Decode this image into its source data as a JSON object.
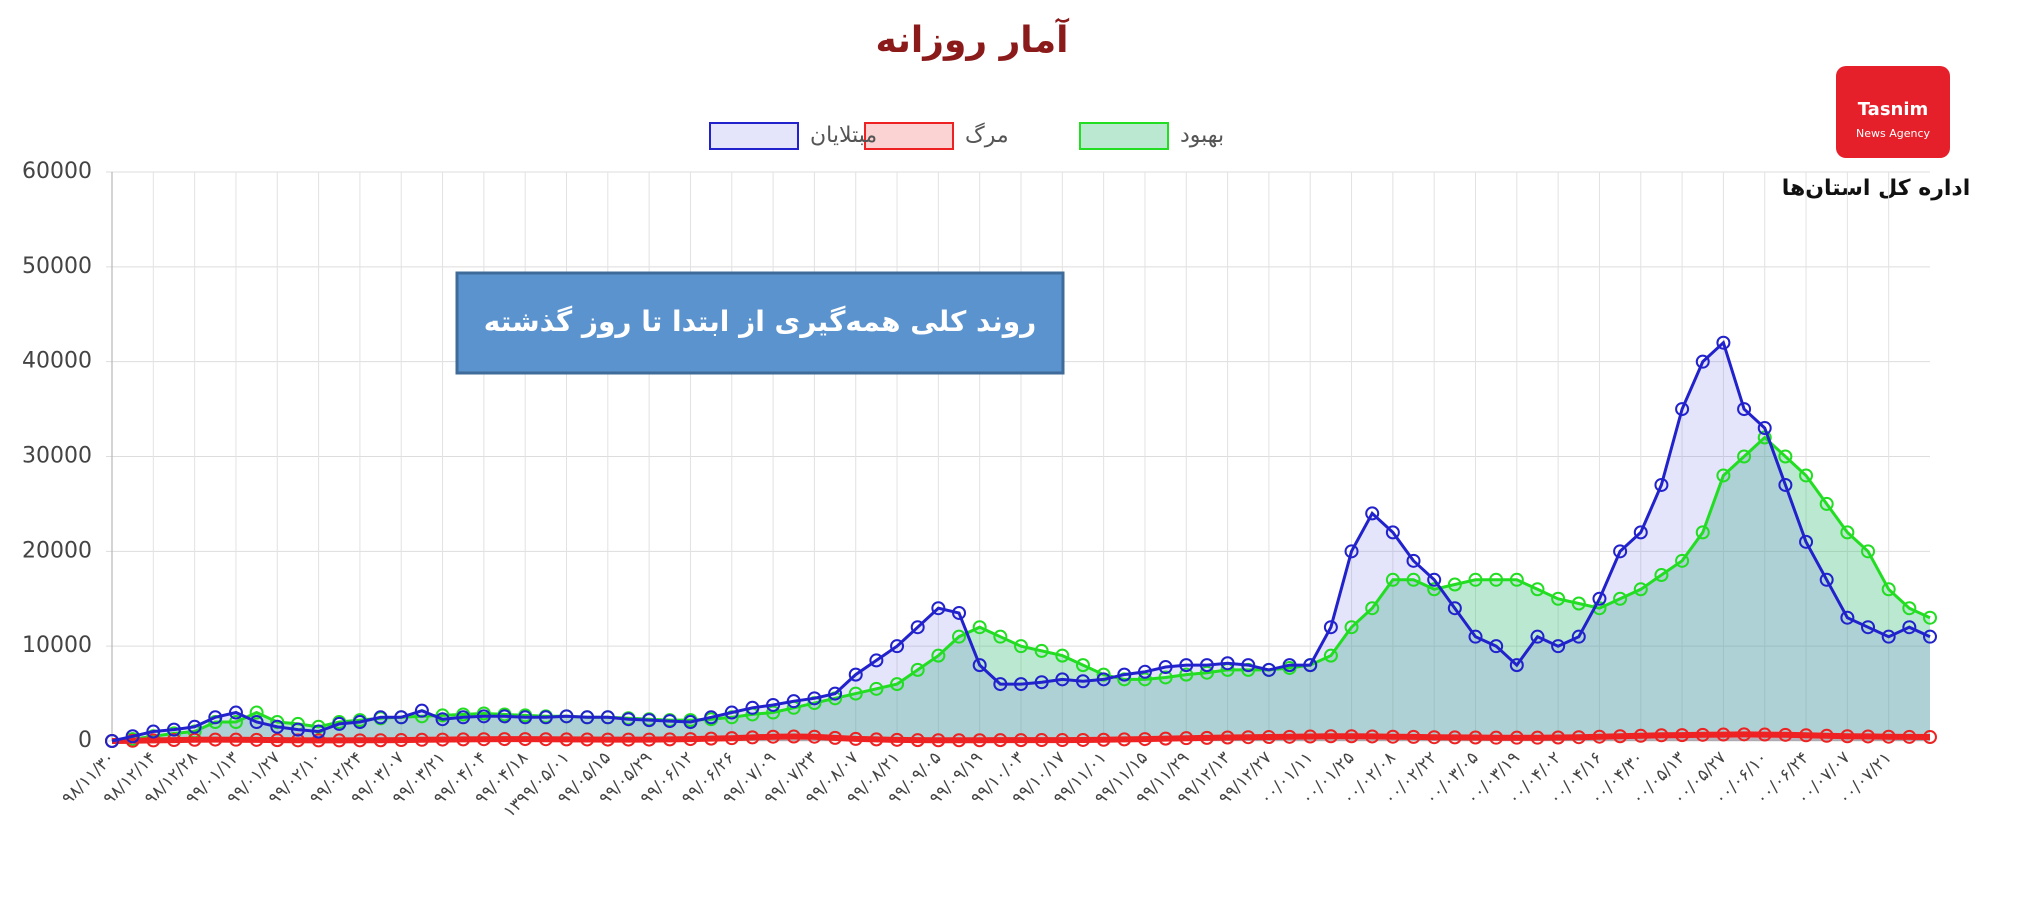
{
  "chart_data": {
    "type": "line",
    "title": "آمار روزانه",
    "annotation": "روند کلی همه‌گیری از ابتدا تا روز گذشته",
    "brand": "اداره کل استان‌ها",
    "logo": [
      "Tasnim",
      "News Agency"
    ],
    "categories": [
      "۹۸/۱۱/۳۰",
      null,
      "۹۸/۱۲/۱۴",
      null,
      "۹۸/۱۲/۲۸",
      null,
      "۹۹/۰۱/۱۳",
      null,
      "۹۹/۰۱/۲۷",
      null,
      "۹۹/۰۲/۱۰",
      null,
      "۹۹/۰۲/۲۴",
      null,
      "۹۹/۰۳/۰۷",
      null,
      "۹۹/۰۳/۲۱",
      null,
      "۹۹/۰۴/۰۴",
      null,
      "۹۹/۰۴/۱۸",
      null,
      "۱۳۹۹/۰۵/۰۱",
      null,
      "۹۹/۰۵/۱۵",
      null,
      "۹۹/۰۵/۲۹",
      null,
      "۹۹/۰۶/۱۲",
      null,
      "۹۹/۰۶/۲۶",
      null,
      "۹۹/۰۷/۰۹",
      null,
      "۹۹/۰۷/۲۳",
      null,
      "۹۹/۰۸/۰۷",
      null,
      "۹۹/۰۸/۲۱",
      null,
      "۹۹/۰۹/۰۵",
      null,
      "۹۹/۰۹/۱۹",
      null,
      "۹۹/۱۰/۰۳",
      null,
      "۹۹/۱۰/۱۷",
      null,
      "۹۹/۱۱/۰۱",
      null,
      "۹۹/۱۱/۱۵",
      null,
      "۹۹/۱۱/۲۹",
      null,
      "۹۹/۱۲/۱۳",
      null,
      "۹۹/۱۲/۲۷",
      null,
      "۰۰/۰۱/۱۱",
      null,
      "۰۰/۰۱/۲۵",
      null,
      "۰۰/۰۲/۰۸",
      null,
      "۰۰/۰۲/۲۲",
      null,
      "۰۰/۰۳/۰۵",
      null,
      "۰۰/۰۳/۱۹",
      null,
      "۰۰/۰۴/۰۲",
      null,
      "۰۰/۰۴/۱۶",
      null,
      "۰۰/۰۴/۳۰",
      null,
      "۰۰/۰۵/۱۳",
      null,
      "۰۰/۰۵/۲۷",
      null,
      "۰۰/۰۶/۱۰",
      null,
      "۰۰/۰۶/۲۴",
      null,
      "۰۰/۰۷/۰۷",
      null,
      "۰۰/۰۷/۲۱",
      null,
      null
    ],
    "series": [
      {
        "name": "بهبود",
        "color": "#22dd22",
        "fill": "rgba(60,190,120,0.35)",
        "values": [
          0,
          200,
          500,
          800,
          1000,
          2000,
          2000,
          3000,
          2000,
          1800,
          1500,
          2000,
          2200,
          2400,
          2500,
          2600,
          2700,
          2800,
          2900,
          2800,
          2700,
          2600,
          2600,
          2500,
          2500,
          2400,
          2300,
          2200,
          2200,
          2300,
          2500,
          2800,
          3000,
          3500,
          4000,
          4500,
          5000,
          5500,
          6000,
          7500,
          9000,
          11000,
          12000,
          11000,
          10000,
          9500,
          9000,
          8000,
          7000,
          6500,
          6500,
          6700,
          7000,
          7200,
          7500,
          7500,
          7500,
          7700,
          8000,
          9000,
          12000,
          14000,
          17000,
          17000,
          16000,
          16500,
          17000,
          17000,
          17000,
          16000,
          15000,
          14500,
          14000,
          15000,
          16000,
          17500,
          19000,
          22000,
          28000,
          30000,
          32000,
          30000,
          28000,
          25000,
          22000,
          20000,
          16000,
          14000,
          13000
        ]
      },
      {
        "name": "مرگ",
        "color": "#ee2222",
        "fill": "rgba(238,34,34,0.2)",
        "values": [
          0,
          20,
          60,
          100,
          130,
          150,
          140,
          120,
          90,
          70,
          60,
          60,
          70,
          80,
          100,
          130,
          150,
          170,
          190,
          200,
          200,
          190,
          170,
          160,
          150,
          150,
          150,
          170,
          200,
          250,
          300,
          380,
          450,
          470,
          450,
          330,
          220,
          170,
          120,
          90,
          80,
          80,
          80,
          90,
          90,
          100,
          100,
          110,
          130,
          170,
          200,
          250,
          300,
          330,
          370,
          400,
          420,
          440,
          470,
          500,
          500,
          480,
          450,
          430,
          400,
          380,
          370,
          350,
          350,
          350,
          370,
          400,
          450,
          500,
          550,
          600,
          620,
          650,
          680,
          700,
          680,
          650,
          600,
          550,
          500,
          480,
          450,
          430,
          420
        ]
      },
      {
        "name": "مبتلایان",
        "color": "#2222cc",
        "fill": "rgba(120,120,230,0.2)",
        "values": [
          0,
          500,
          1000,
          1200,
          1500,
          2500,
          3000,
          2000,
          1500,
          1200,
          1000,
          1800,
          2000,
          2500,
          2500,
          3200,
          2300,
          2500,
          2600,
          2600,
          2500,
          2500,
          2600,
          2500,
          2500,
          2300,
          2200,
          2100,
          2000,
          2500,
          3000,
          3500,
          3800,
          4200,
          4500,
          5000,
          7000,
          8500,
          10000,
          12000,
          14000,
          13500,
          8000,
          6000,
          6000,
          6200,
          6500,
          6300,
          6500,
          7000,
          7300,
          7800,
          8000,
          8000,
          8200,
          8000,
          7500,
          8000,
          8000,
          12000,
          20000,
          24000,
          22000,
          19000,
          17000,
          14000,
          11000,
          10000,
          8000,
          11000,
          10000,
          11000,
          15000,
          20000,
          22000,
          27000,
          35000,
          40000,
          42000,
          35000,
          33000,
          27000,
          21000,
          17000,
          13000,
          12000,
          11000,
          12000,
          11000
        ]
      }
    ],
    "ylim": [
      0,
      60000
    ],
    "yticks": [
      0,
      10000,
      20000,
      30000,
      40000,
      50000,
      60000
    ],
    "grid": true
  }
}
